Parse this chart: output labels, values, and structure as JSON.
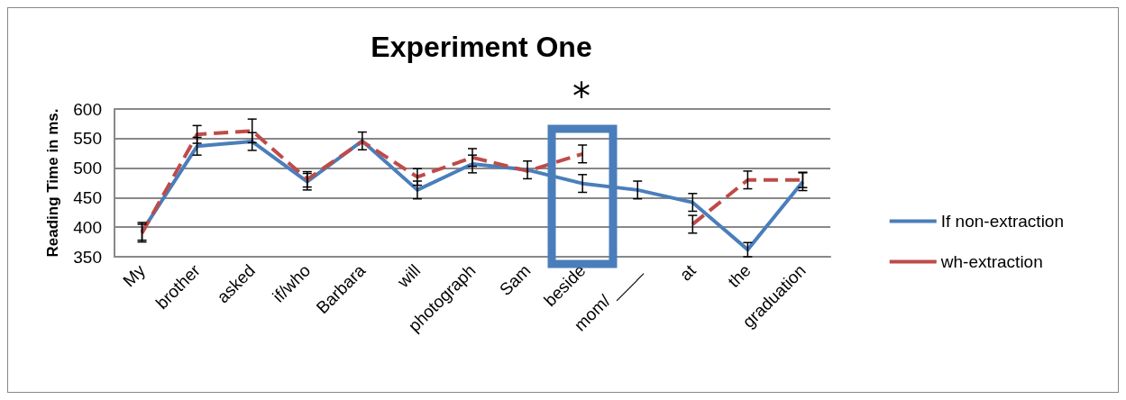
{
  "chart_data": {
    "type": "line",
    "title": "Experiment One",
    "ylabel": "Reading Time in ms.",
    "categories": [
      "My",
      "brother",
      "asked",
      "if/who",
      "Barbara",
      "will",
      "photograph",
      "Sam",
      "beside",
      "mom/ ____",
      "at",
      "the",
      "graduation"
    ],
    "series": [
      {
        "name": "If non-extraction",
        "color": "#4a7ebb",
        "line_style": "solid",
        "values": [
          393,
          537,
          545,
          477,
          546,
          463,
          507,
          497,
          474,
          463,
          442,
          362,
          477
        ],
        "errors": [
          15,
          15,
          15,
          14,
          15,
          15,
          15,
          15,
          15,
          15,
          15,
          12,
          15
        ]
      },
      {
        "name": "wh-extraction",
        "color": "#be4b48",
        "line_style": "dashed",
        "values": [
          390,
          557,
          563,
          481,
          545,
          485,
          518,
          495,
          524,
          null,
          405,
          480,
          480
        ],
        "errors": [
          15,
          15,
          20,
          13,
          null,
          14,
          15,
          null,
          15,
          null,
          15,
          15,
          13
        ]
      }
    ],
    "ylim": [
      350,
      600
    ],
    "yticks": [
      350,
      400,
      450,
      500,
      550,
      600
    ],
    "grid": "y",
    "legend": "right",
    "marker": "none",
    "annotations": [
      "*"
    ]
  }
}
